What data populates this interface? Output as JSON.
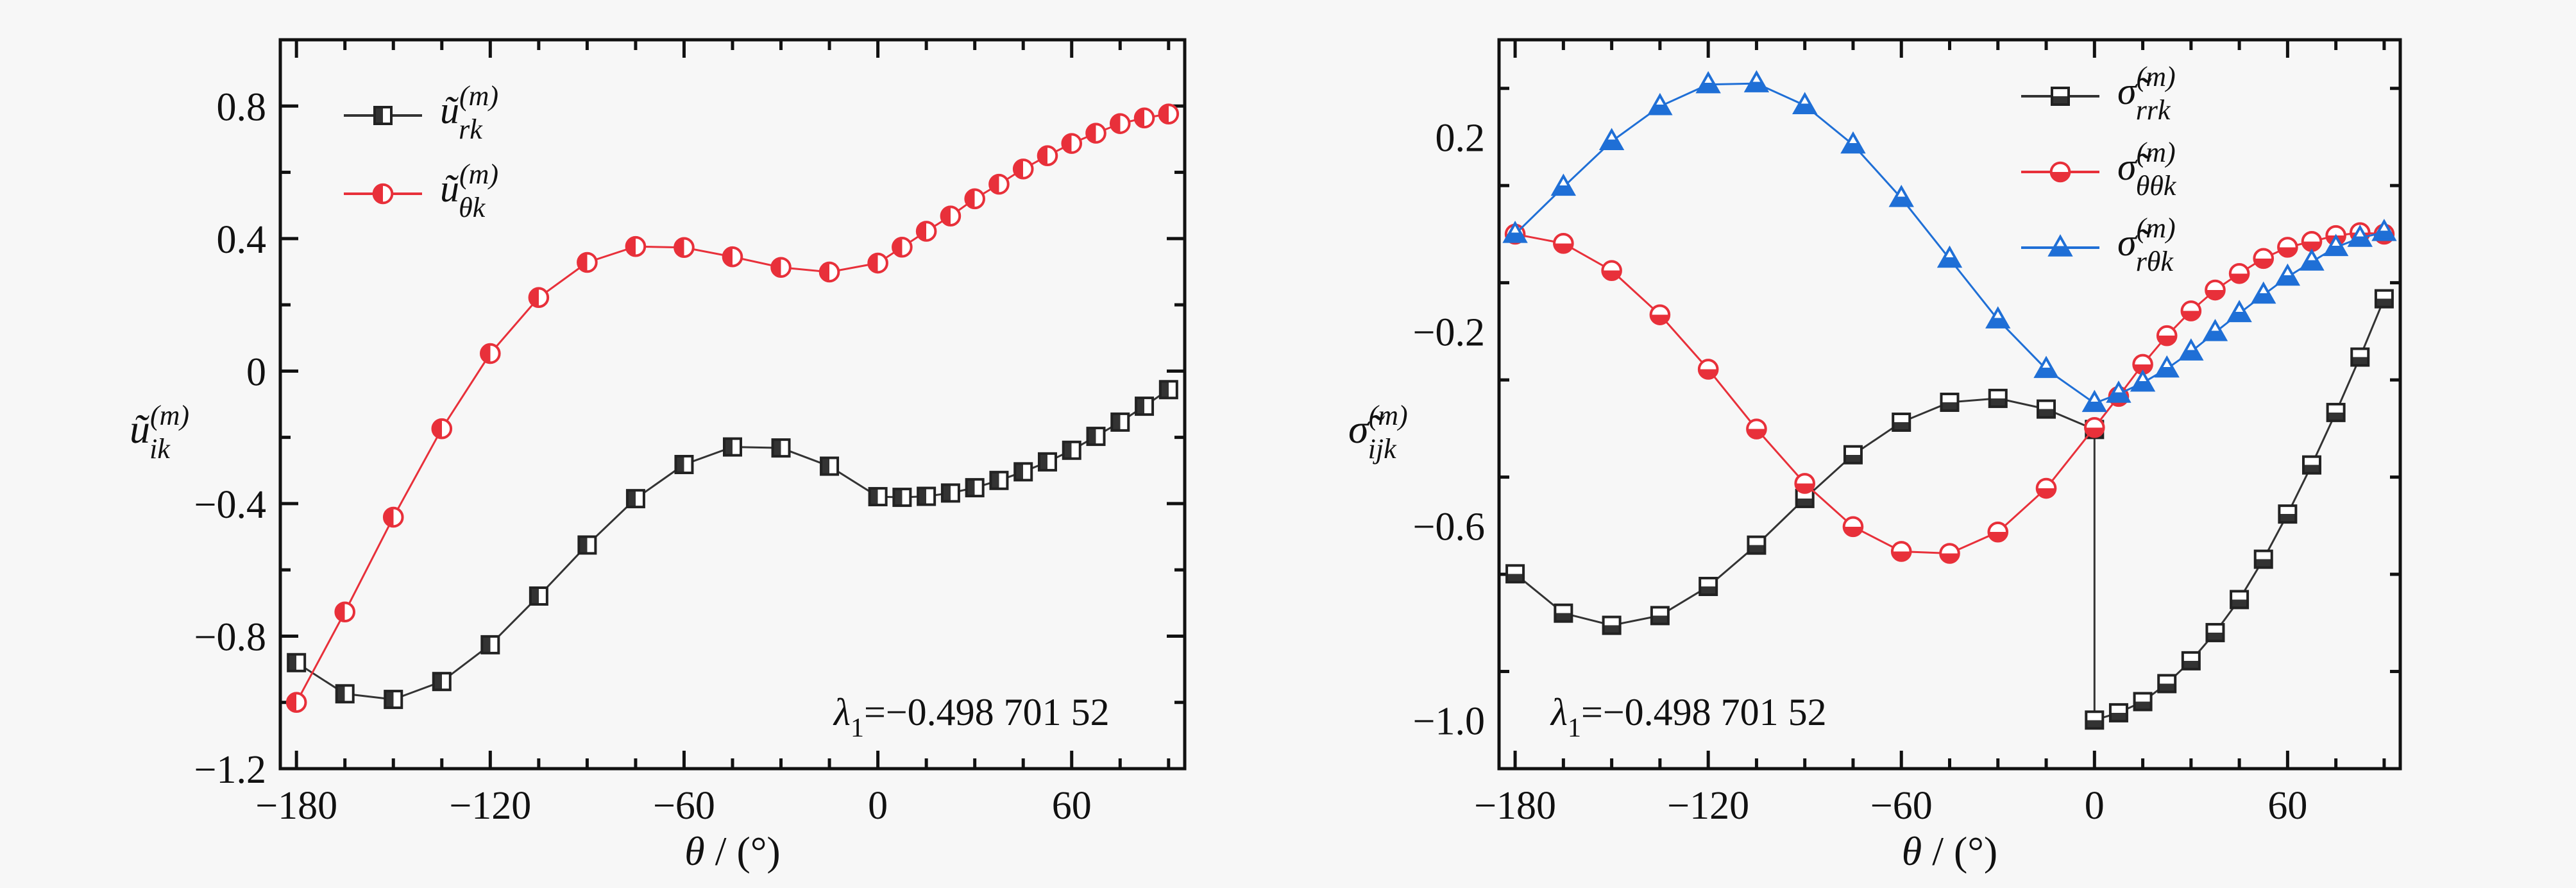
{
  "chart_data": [
    {
      "type": "line",
      "xlabel": {
        "symbol": "θ",
        "unit": " / (°)"
      },
      "ylabel": {
        "base": "ũ",
        "sub": "ik",
        "sup": "(m)"
      },
      "xlim": [
        -185,
        95
      ],
      "ylim": [
        -1.2,
        1.0
      ],
      "xticks": [
        -180,
        -120,
        -60,
        0,
        60
      ],
      "xtick_labels": [
        "−180",
        "−120",
        "−60",
        "0",
        "60"
      ],
      "yticks": [
        -1.2,
        -0.8,
        -0.4,
        0,
        0.4,
        0.8
      ],
      "ytick_labels": [
        "−1.2",
        "−0.8",
        "−0.4",
        "0",
        "0.4",
        "0.8"
      ],
      "grid": false,
      "legend_position": "top-left",
      "annotation": {
        "symbol": "λ",
        "sub": "1",
        "text": "=−0.498 701 52"
      },
      "x": [
        -180,
        -165,
        -150,
        -135,
        -120,
        -105,
        -90,
        -75,
        -60,
        -45,
        -30,
        -15,
        0,
        7.5,
        15,
        22.5,
        30,
        37.5,
        45,
        52.5,
        60,
        67.5,
        75,
        82.5,
        90
      ],
      "series": [
        {
          "name": {
            "base": "ũ",
            "sub": "rk",
            "sup": "(m)"
          },
          "color": "#333333",
          "marker": "square-half-left",
          "values": [
            -0.88,
            -0.974,
            -0.991,
            -0.937,
            -0.826,
            -0.679,
            -0.525,
            -0.385,
            -0.282,
            -0.229,
            -0.232,
            -0.287,
            -0.379,
            -0.381,
            -0.378,
            -0.368,
            -0.352,
            -0.33,
            -0.304,
            -0.274,
            -0.239,
            -0.197,
            -0.154,
            -0.106,
            -0.056
          ]
        },
        {
          "name": {
            "base": "ũ",
            "sub": "θk",
            "sup": "(m)"
          },
          "color": "#e8303a",
          "marker": "circle-half-left",
          "values": [
            -1.0,
            -0.727,
            -0.441,
            -0.174,
            0.053,
            0.222,
            0.328,
            0.376,
            0.373,
            0.345,
            0.313,
            0.299,
            0.326,
            0.374,
            0.422,
            0.468,
            0.52,
            0.564,
            0.61,
            0.65,
            0.687,
            0.718,
            0.747,
            0.764,
            0.776
          ]
        }
      ]
    },
    {
      "type": "line",
      "xlabel": {
        "symbol": "θ",
        "unit": " / (°)"
      },
      "ylabel": {
        "base": "σ̃",
        "sub": "ijk",
        "sup": "(m)"
      },
      "xlim": [
        -185,
        95
      ],
      "ylim": [
        -1.1,
        0.4
      ],
      "xticks": [
        -180,
        -120,
        -60,
        0,
        60
      ],
      "xtick_labels": [
        "−180",
        "−120",
        "−60",
        "0",
        "60"
      ],
      "yticks": [
        -1.0,
        -0.6,
        -0.2,
        0.2
      ],
      "ytick_labels": [
        "−1.0",
        "−0.6",
        "−0.2",
        "0.2"
      ],
      "grid": false,
      "legend_position": "top-right",
      "annotation": {
        "symbol": "λ",
        "sub": "1",
        "text": "=−0.498 701 52"
      },
      "series": [
        {
          "name": {
            "base": "σ̃",
            "sub": "rrk",
            "sup": "(m)"
          },
          "color": "#333333",
          "marker": "square-half-bottom",
          "x": [
            -180,
            -165,
            -150,
            -135,
            -120,
            -105,
            -90,
            -75,
            -60,
            -45,
            -30,
            -15,
            0,
            0,
            7.5,
            15,
            22.5,
            30,
            37.5,
            45,
            52.5,
            60,
            67.5,
            75,
            82.5,
            90
          ],
          "values": [
            -0.699,
            -0.78,
            -0.805,
            -0.785,
            -0.725,
            -0.64,
            -0.544,
            -0.454,
            -0.387,
            -0.346,
            -0.338,
            -0.36,
            -0.402,
            -1.0,
            -0.985,
            -0.962,
            -0.925,
            -0.878,
            -0.82,
            -0.752,
            -0.669,
            -0.576,
            -0.475,
            -0.367,
            -0.253,
            -0.133
          ]
        },
        {
          "name": {
            "base": "σ̃",
            "sub": "θθk",
            "sup": "(m)"
          },
          "color": "#e8303a",
          "marker": "circle-half-bottom",
          "x": [
            -180,
            -165,
            -150,
            -135,
            -120,
            -105,
            -90,
            -75,
            -60,
            -45,
            -30,
            -15,
            0,
            7.5,
            15,
            22.5,
            30,
            37.5,
            45,
            52.5,
            60,
            67.5,
            75,
            82.5,
            90
          ],
          "values": [
            0,
            -0.019,
            -0.075,
            -0.166,
            -0.278,
            -0.401,
            -0.513,
            -0.602,
            -0.653,
            -0.657,
            -0.613,
            -0.523,
            -0.398,
            -0.334,
            -0.268,
            -0.209,
            -0.158,
            -0.115,
            -0.081,
            -0.05,
            -0.027,
            -0.015,
            -0.003,
            0.003,
            0
          ]
        },
        {
          "name": {
            "base": "σ̃",
            "sub": "rθk",
            "sup": "(m)"
          },
          "color": "#1f6fd6",
          "marker": "triangle-half-bottom",
          "x": [
            -180,
            -165,
            -150,
            -135,
            -120,
            -105,
            -90,
            -75,
            -60,
            -45,
            -30,
            -15,
            0,
            7.5,
            15,
            22.5,
            30,
            37.5,
            45,
            52.5,
            60,
            67.5,
            75,
            82.5,
            90
          ],
          "values": [
            0,
            0.097,
            0.191,
            0.263,
            0.308,
            0.31,
            0.265,
            0.184,
            0.074,
            -0.051,
            -0.176,
            -0.278,
            -0.348,
            -0.329,
            -0.306,
            -0.277,
            -0.242,
            -0.202,
            -0.163,
            -0.125,
            -0.088,
            -0.057,
            -0.027,
            -0.008,
            0.004
          ]
        }
      ]
    }
  ]
}
